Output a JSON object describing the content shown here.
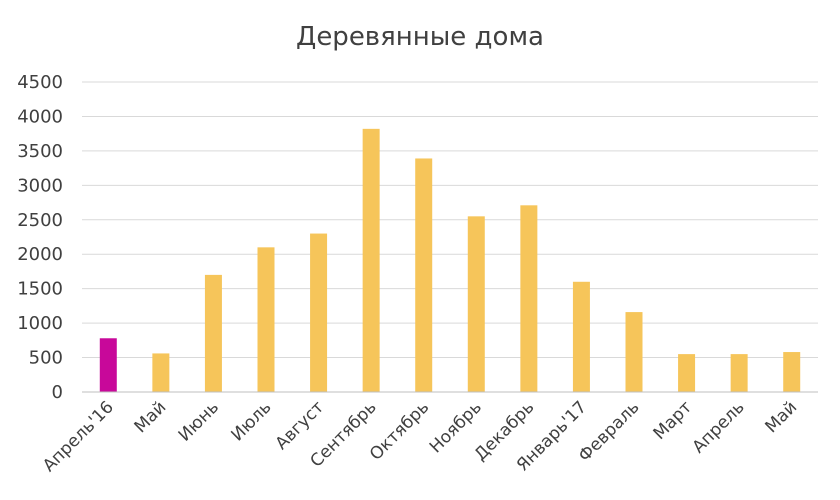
{
  "chart_data": {
    "type": "bar",
    "title": "Деревянные дома",
    "xlabel": "",
    "ylabel": "",
    "ylim": [
      0,
      4500
    ],
    "yticks": [
      0,
      500,
      1000,
      1500,
      2000,
      2500,
      3000,
      3500,
      4000,
      4500
    ],
    "grid": true,
    "legend": "none",
    "categories": [
      "Апрель'16",
      "Май",
      "Июнь",
      "Июль",
      "Август",
      "Сентябрь",
      "Октябрь",
      "Ноябрь",
      "Декабрь",
      "Январь'17",
      "Февраль",
      "Март",
      "Апрель",
      "Май"
    ],
    "values": [
      780,
      560,
      1700,
      2100,
      2300,
      3820,
      3390,
      2550,
      2710,
      1600,
      1160,
      550,
      550,
      580
    ],
    "colors": {
      "default": "#f6c55a",
      "highlight": "#c8089a"
    },
    "highlight_index": 0
  }
}
